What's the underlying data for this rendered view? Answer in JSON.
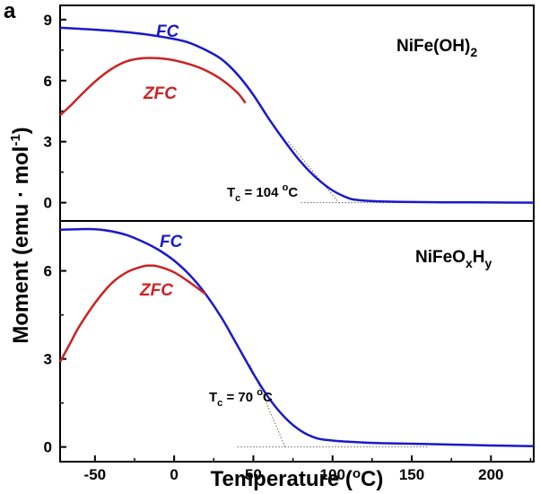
{
  "panel_letter": "a",
  "x_axis_title": "Temperature (",
  "x_axis_title_sup": "o",
  "x_axis_title_end": "C)",
  "y_axis_title": "Moment (emu · mol",
  "y_axis_title_sup": "-1",
  "y_axis_title_end": ")",
  "colors": {
    "fc": "#1a1ac8",
    "zfc": "#cc2222",
    "frame": "#000000",
    "guide": "#666666"
  },
  "chart_data": [
    {
      "type": "line",
      "sample_label": "NiFe(OH)",
      "sample_label_sub": "2",
      "tc_label": "T",
      "tc_sub": "c",
      "tc_value": " = 104 ",
      "tc_sup": "o",
      "tc_unit": "C",
      "tc": 104,
      "xlim": [
        -72,
        227
      ],
      "ylim": [
        -0.9,
        9.7
      ],
      "yticks": [
        0,
        3,
        6,
        9
      ],
      "series": [
        {
          "name": "FC",
          "color": "#1a1ac8",
          "x": [
            -72,
            -60,
            -40,
            -20,
            0,
            10,
            20,
            30,
            40,
            50,
            60,
            70,
            80,
            90,
            100,
            110,
            115,
            120,
            130,
            150,
            170,
            200,
            227
          ],
          "y": [
            8.6,
            8.55,
            8.45,
            8.3,
            8.05,
            7.85,
            7.5,
            7.05,
            6.3,
            5.3,
            4.1,
            3.0,
            2.0,
            1.2,
            0.6,
            0.22,
            0.14,
            0.1,
            0.06,
            0.03,
            0.02,
            0.01,
            0.0
          ]
        },
        {
          "name": "ZFC",
          "color": "#cc2222",
          "x": [
            -72,
            -65,
            -60,
            -50,
            -40,
            -30,
            -20,
            -10,
            0,
            10,
            20,
            30,
            40,
            45
          ],
          "y": [
            4.3,
            4.8,
            5.2,
            5.95,
            6.55,
            6.95,
            7.1,
            7.1,
            7.0,
            6.8,
            6.5,
            6.05,
            5.4,
            4.9
          ]
        }
      ],
      "guides": [
        {
          "x": [
            72,
            104
          ],
          "y": [
            3.0,
            0.0
          ]
        },
        {
          "x": [
            80,
            160
          ],
          "y": [
            0.0,
            0.0
          ]
        }
      ]
    },
    {
      "type": "line",
      "sample_label": "NiFeO",
      "sample_label_sub1": "x",
      "sample_label_mid": "H",
      "sample_label_sub2": "y",
      "tc_label": "T",
      "tc_sub": "c",
      "tc_value": " = 70 ",
      "tc_sup": "o",
      "tc_unit": "C",
      "tc": 70,
      "xlim": [
        -72,
        227
      ],
      "ylim": [
        -0.5,
        7.7
      ],
      "yticks": [
        0,
        3,
        6
      ],
      "series": [
        {
          "name": "FC",
          "color": "#1a1ac8",
          "x": [
            -72,
            -60,
            -50,
            -40,
            -30,
            -20,
            -10,
            0,
            10,
            20,
            30,
            40,
            50,
            60,
            70,
            80,
            90,
            100,
            110,
            130,
            160,
            200,
            227
          ],
          "y": [
            7.4,
            7.42,
            7.42,
            7.35,
            7.22,
            7.0,
            6.72,
            6.35,
            5.85,
            5.2,
            4.4,
            3.45,
            2.5,
            1.65,
            1.0,
            0.55,
            0.3,
            0.22,
            0.18,
            0.13,
            0.1,
            0.05,
            0.03
          ]
        },
        {
          "name": "ZFC",
          "color": "#cc2222",
          "x": [
            -72,
            -65,
            -60,
            -50,
            -40,
            -30,
            -20,
            -15,
            -10,
            0,
            10,
            20
          ],
          "y": [
            2.9,
            3.6,
            4.1,
            4.9,
            5.55,
            5.95,
            6.15,
            6.18,
            6.15,
            5.95,
            5.6,
            5.2
          ]
        }
      ],
      "guides": [
        {
          "x": [
            48,
            70
          ],
          "y": [
            2.8,
            0.0
          ]
        },
        {
          "x": [
            40,
            160
          ],
          "y": [
            0.0,
            0.0
          ]
        }
      ]
    }
  ],
  "x_axis": {
    "ticks": [
      -50,
      0,
      50,
      100,
      150,
      200
    ]
  },
  "series_labels": [
    "FC",
    "ZFC"
  ]
}
